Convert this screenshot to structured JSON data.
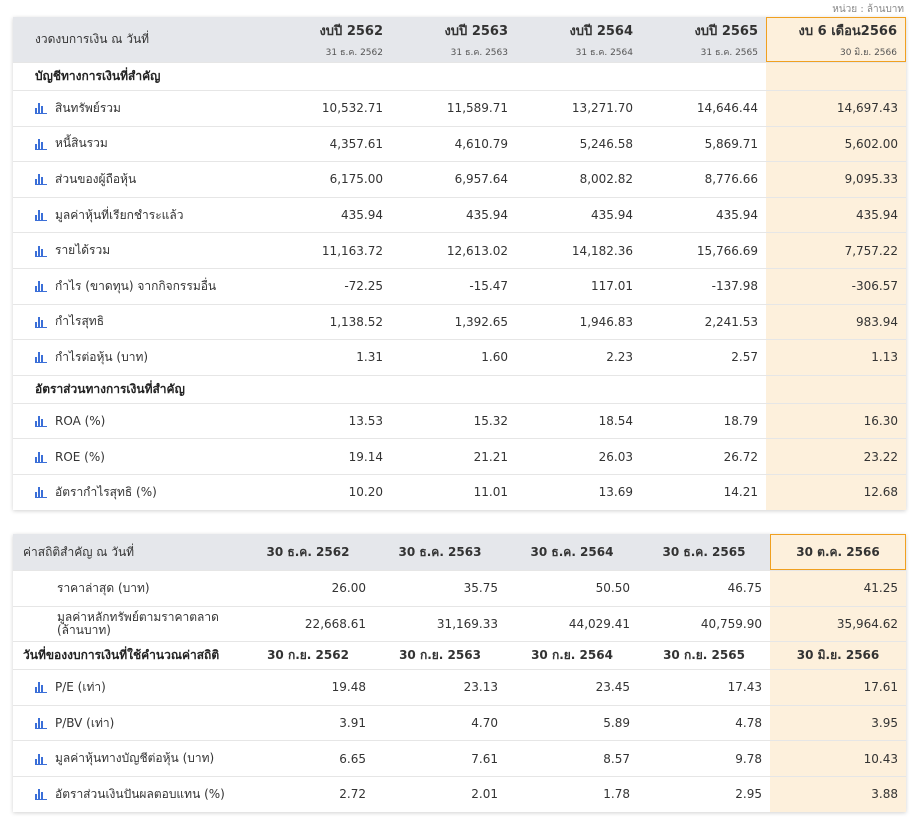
{
  "unit_label": "หน่วย : ล้านบาท",
  "colors": {
    "header_bg": "#e5e7eb",
    "highlight_header": "#f8b13a",
    "highlight_cell": "#fdf0dc",
    "icon": "#3b6fd8"
  },
  "financial": {
    "header_label": "งวดงบการเงิน ณ วันที่",
    "periods": [
      {
        "year": "งบปี 2562",
        "date": "31 ธ.ค. 2562"
      },
      {
        "year": "งบปี 2563",
        "date": "31 ธ.ค. 2563"
      },
      {
        "year": "งบปี 2564",
        "date": "31 ธ.ค. 2564"
      },
      {
        "year": "งบปี 2565",
        "date": "31 ธ.ค. 2565"
      },
      {
        "year": "งบ 6 เดือน2566",
        "date": "30 มิ.ย. 2566"
      }
    ],
    "section1_title": "บัญชีทางการเงินที่สำคัญ",
    "section1_rows": [
      {
        "label": "สินทรัพย์รวม",
        "values": [
          "10,532.71",
          "11,589.71",
          "13,271.70",
          "14,646.44",
          "14,697.43"
        ]
      },
      {
        "label": "หนี้สินรวม",
        "values": [
          "4,357.61",
          "4,610.79",
          "5,246.58",
          "5,869.71",
          "5,602.00"
        ]
      },
      {
        "label": "ส่วนของผู้ถือหุ้น",
        "values": [
          "6,175.00",
          "6,957.64",
          "8,002.82",
          "8,776.66",
          "9,095.33"
        ]
      },
      {
        "label": "มูลค่าหุ้นที่เรียกชำระแล้ว",
        "values": [
          "435.94",
          "435.94",
          "435.94",
          "435.94",
          "435.94"
        ]
      },
      {
        "label": "รายได้รวม",
        "values": [
          "11,163.72",
          "12,613.02",
          "14,182.36",
          "15,766.69",
          "7,757.22"
        ]
      },
      {
        "label": "กำไร (ขาดทุน) จากกิจกรรมอื่น",
        "values": [
          "-72.25",
          "-15.47",
          "117.01",
          "-137.98",
          "-306.57"
        ]
      },
      {
        "label": "กำไรสุทธิ",
        "values": [
          "1,138.52",
          "1,392.65",
          "1,946.83",
          "2,241.53",
          "983.94"
        ]
      },
      {
        "label": "กำไรต่อหุ้น (บาท)",
        "values": [
          "1.31",
          "1.60",
          "2.23",
          "2.57",
          "1.13"
        ]
      }
    ],
    "section2_title": "อัตราส่วนทางการเงินที่สำคัญ",
    "section2_rows": [
      {
        "label": "ROA (%)",
        "values": [
          "13.53",
          "15.32",
          "18.54",
          "18.79",
          "16.30"
        ]
      },
      {
        "label": "ROE (%)",
        "values": [
          "19.14",
          "21.21",
          "26.03",
          "26.72",
          "23.22"
        ]
      },
      {
        "label": "อัตรากำไรสุทธิ (%)",
        "values": [
          "10.20",
          "11.01",
          "13.69",
          "14.21",
          "12.68"
        ]
      }
    ]
  },
  "statistics": {
    "header_label": "ค่าสถิติสำคัญ ณ วันที่",
    "dates": [
      "30 ธ.ค. 2562",
      "30 ธ.ค. 2563",
      "30 ธ.ค. 2564",
      "30 ธ.ค. 2565",
      "30 ต.ค. 2566"
    ],
    "plain_rows": [
      {
        "label": "ราคาล่าสุด (บาท)",
        "values": [
          "26.00",
          "35.75",
          "50.50",
          "46.75",
          "41.25"
        ]
      },
      {
        "label": "มูลค่าหลักทรัพย์ตามราคาตลาด (ล้านบาท)",
        "values": [
          "22,668.61",
          "31,169.33",
          "44,029.41",
          "40,759.90",
          "35,964.62"
        ]
      }
    ],
    "sub_header_label": "วันที่ของงบการเงินที่ใช้คำนวณค่าสถิติ",
    "sub_header_dates": [
      "30 ก.ย. 2562",
      "30 ก.ย. 2563",
      "30 ก.ย. 2564",
      "30 ก.ย. 2565",
      "30 มิ.ย. 2566"
    ],
    "icon_rows": [
      {
        "label": "P/E (เท่า)",
        "values": [
          "19.48",
          "23.13",
          "23.45",
          "17.43",
          "17.61"
        ]
      },
      {
        "label": "P/BV (เท่า)",
        "values": [
          "3.91",
          "4.70",
          "5.89",
          "4.78",
          "3.95"
        ]
      },
      {
        "label": "มูลค่าหุ้นทางบัญชีต่อหุ้น (บาท)",
        "values": [
          "6.65",
          "7.61",
          "8.57",
          "9.78",
          "10.43"
        ]
      },
      {
        "label": "อัตราส่วนเงินปันผลตอบแทน (%)",
        "values": [
          "2.72",
          "2.01",
          "1.78",
          "2.95",
          "3.88"
        ]
      }
    ]
  }
}
